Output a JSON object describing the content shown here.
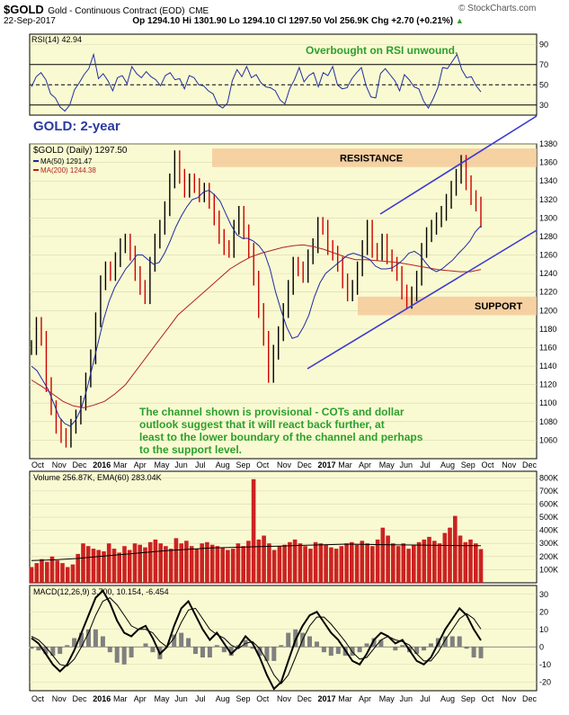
{
  "header": {
    "symbol": "$GOLD",
    "name": "Gold - Continuous Contract (EOD)",
    "exchange": "CME",
    "date": "22-Sep-2017",
    "open": "Op 1294.10",
    "high": "Hi 1301.90",
    "low": "Lo 1294.10",
    "close": "Cl 1297.50",
    "volume": "Vol 256.9K",
    "change": "Chg +2.70 (+0.21%)",
    "change_arrow": "▲",
    "copyright": "© StockCharts.com"
  },
  "colors": {
    "panel_bg": "#fafad2",
    "price_bar_up": "#000000",
    "price_bar_down": "#cc0000",
    "ma50": "#1f2aa0",
    "ma200": "#b22222",
    "channel": "#3a3ad0",
    "zone": "#f4c99a",
    "annotation_green": "#2ca02c",
    "rsi": "#2030a0",
    "volume_bar": "#cc2222",
    "macd_hist": "#808080"
  },
  "chart_data": [
    {
      "type": "line",
      "panel": "rsi",
      "title": "RSI(14) 42.94",
      "annotation": "Overbought on RSI unwound.",
      "ylim": [
        20,
        100
      ],
      "ticks": [
        "90",
        "70",
        "50",
        "30"
      ],
      "reference_lines": [
        70,
        50,
        30
      ],
      "values": [
        48,
        58,
        62,
        55,
        41,
        37,
        28,
        24,
        30,
        45,
        52,
        60,
        66,
        80,
        56,
        61,
        54,
        44,
        57,
        59,
        51,
        68,
        61,
        57,
        63,
        58,
        55,
        49,
        59,
        62,
        55,
        56,
        46,
        59,
        57,
        50,
        49,
        44,
        41,
        30,
        27,
        32,
        54,
        65,
        58,
        68,
        57,
        60,
        52,
        48,
        47,
        44,
        35,
        31,
        46,
        55,
        67,
        53,
        59,
        62,
        48,
        62,
        59,
        68,
        50,
        46,
        47,
        56,
        62,
        67,
        49,
        38,
        37,
        61,
        66,
        60,
        54,
        44,
        60,
        55,
        48,
        46,
        34,
        27,
        36,
        47,
        67,
        66,
        73,
        80,
        65,
        57,
        58,
        49,
        42.94
      ]
    },
    {
      "type": "line",
      "panel": "price",
      "label": "GOLD: 2-year",
      "legend": [
        "$GOLD (Daily) 1297.50",
        "MA(50) 1291.47",
        "MA(200) 1244.38"
      ],
      "ylim": [
        1040,
        1380
      ],
      "ticks": [
        "1380",
        "1360",
        "1340",
        "1320",
        "1300",
        "1280",
        "1260",
        "1240",
        "1220",
        "1200",
        "1180",
        "1160",
        "1140",
        "1120",
        "1100",
        "1080",
        "1060"
      ],
      "x_labels": [
        "Oct",
        "Nov",
        "Dec",
        "2016",
        "Mar",
        "Apr",
        "May",
        "Jun",
        "Jul",
        "Aug",
        "Sep",
        "Oct",
        "Nov",
        "Dec",
        "2017",
        "Mar",
        "Apr",
        "May",
        "Jun",
        "Jul",
        "Aug",
        "Sep",
        "Oct",
        "Nov",
        "Dec"
      ],
      "series": [
        {
          "name": "$GOLD (Daily)",
          "values": [
            1160,
            1185,
            1170,
            1120,
            1095,
            1075,
            1065,
            1060,
            1075,
            1085,
            1100,
            1125,
            1150,
            1190,
            1230,
            1245,
            1240,
            1255,
            1270,
            1275,
            1262,
            1240,
            1225,
            1215,
            1250,
            1275,
            1290,
            1310,
            1340,
            1365,
            1345,
            1330,
            1340,
            1335,
            1325,
            1330,
            1318,
            1300,
            1280,
            1268,
            1265,
            1290,
            1305,
            1285,
            1265,
            1235,
            1200,
            1170,
            1130,
            1155,
            1175,
            1200,
            1225,
            1250,
            1245,
            1238,
            1258,
            1270,
            1293,
            1290,
            1268,
            1262,
            1250,
            1232,
            1218,
            1225,
            1245,
            1268,
            1290,
            1265,
            1262,
            1275,
            1258,
            1250,
            1240,
            1220,
            1210,
            1218,
            1235,
            1265,
            1282,
            1290,
            1298,
            1305,
            1318,
            1332,
            1345,
            1360,
            1338,
            1322,
            1315,
            1297.5
          ]
        },
        {
          "name": "MA(50)",
          "values": [
            1140,
            1135,
            1125,
            1115,
            1100,
            1085,
            1078,
            1075,
            1082,
            1095,
            1115,
            1140,
            1165,
            1190,
            1210,
            1225,
            1235,
            1245,
            1252,
            1260,
            1260,
            1255,
            1250,
            1252,
            1262,
            1275,
            1290,
            1302,
            1312,
            1320,
            1322,
            1328,
            1330,
            1325,
            1318,
            1305,
            1292,
            1282,
            1278,
            1278,
            1275,
            1270,
            1262,
            1245,
            1220,
            1200,
            1182,
            1170,
            1172,
            1182,
            1195,
            1215,
            1230,
            1240,
            1245,
            1250,
            1255,
            1260,
            1262,
            1260,
            1258,
            1255,
            1248,
            1245,
            1245,
            1246,
            1250,
            1255,
            1262,
            1264,
            1260,
            1252,
            1245,
            1242,
            1245,
            1250,
            1255,
            1262,
            1268,
            1275,
            1285,
            1291.47
          ]
        },
        {
          "name": "MA(200)",
          "values": [
            1125,
            1118,
            1110,
            1102,
            1097,
            1095,
            1098,
            1102,
            1110,
            1120,
            1135,
            1150,
            1165,
            1180,
            1195,
            1205,
            1215,
            1225,
            1235,
            1245,
            1252,
            1258,
            1262,
            1265,
            1268,
            1270,
            1271,
            1269,
            1266,
            1262,
            1258,
            1255,
            1255,
            1254,
            1253,
            1252,
            1250,
            1248,
            1246,
            1244,
            1243,
            1242,
            1242,
            1244.38
          ]
        }
      ],
      "zones": [
        {
          "label": "RESISTANCE",
          "from": 1355,
          "to": 1375
        },
        {
          "label": "SUPPORT",
          "from": 1195,
          "to": 1215
        }
      ],
      "annotation": "The channel shown is provisional - COTs and dollar outlook suggest that it will react back further, at least to the lower boundary of the channel and perhaps to the support level."
    },
    {
      "type": "bar",
      "panel": "volume",
      "title": "Volume 256.87K, EMA(60) 283.04K",
      "ylim": [
        0,
        850
      ],
      "ticks": [
        "800K",
        "700K",
        "600K",
        "500K",
        "400K",
        "300K",
        "200K",
        "100K"
      ],
      "values": [
        120,
        150,
        180,
        160,
        200,
        170,
        150,
        120,
        140,
        220,
        300,
        280,
        260,
        250,
        240,
        300,
        260,
        230,
        280,
        250,
        300,
        290,
        270,
        310,
        330,
        300,
        280,
        260,
        340,
        300,
        320,
        280,
        260,
        300,
        310,
        290,
        280,
        270,
        250,
        260,
        300,
        280,
        320,
        790,
        330,
        360,
        300,
        250,
        280,
        290,
        310,
        330,
        300,
        280,
        260,
        310,
        300,
        290,
        270,
        260,
        280,
        300,
        310,
        290,
        320,
        300,
        280,
        330,
        420,
        360,
        300,
        280,
        300,
        260,
        290,
        310,
        330,
        350,
        320,
        300,
        380,
        420,
        510,
        360,
        310,
        330,
        300,
        256.87
      ],
      "ema": [
        170,
        175,
        185,
        200,
        215,
        230,
        245,
        255,
        265,
        270,
        275,
        280,
        285,
        290,
        295,
        292,
        290,
        288,
        285,
        284,
        283.04
      ]
    },
    {
      "type": "line",
      "panel": "macd",
      "title": "MACD(12,26,9) 3.700, 10.154, -6.454",
      "ylim": [
        -25,
        35
      ],
      "ticks": [
        "30",
        "20",
        "10",
        "0",
        "-10",
        "-20"
      ],
      "series": [
        {
          "name": "MACD",
          "values": [
            5,
            2,
            -4,
            -10,
            -14,
            -10,
            -2,
            8,
            18,
            28,
            32,
            25,
            15,
            8,
            6,
            10,
            12,
            5,
            -4,
            0,
            12,
            22,
            26,
            18,
            10,
            4,
            8,
            2,
            -4,
            0,
            6,
            2,
            -6,
            -16,
            -24,
            -20,
            -8,
            4,
            12,
            18,
            20,
            14,
            8,
            4,
            -2,
            -8,
            -10,
            -4,
            4,
            8,
            6,
            2,
            4,
            -2,
            -8,
            -10,
            -6,
            2,
            10,
            16,
            22,
            18,
            10,
            3.7
          ]
        },
        {
          "name": "Signal",
          "values": [
            6,
            4,
            0,
            -5,
            -10,
            -11,
            -7,
            0,
            8,
            18,
            26,
            28,
            24,
            18,
            12,
            10,
            10,
            8,
            3,
            0,
            5,
            14,
            21,
            22,
            16,
            10,
            7,
            5,
            1,
            -1,
            2,
            3,
            -1,
            -8,
            -16,
            -21,
            -16,
            -6,
            4,
            12,
            17,
            17,
            13,
            8,
            3,
            -3,
            -7,
            -6,
            -1,
            4,
            6,
            4,
            3,
            1,
            -4,
            -8,
            -8,
            -3,
            4,
            10,
            16,
            19,
            16,
            10.154
          ]
        }
      ]
    }
  ]
}
